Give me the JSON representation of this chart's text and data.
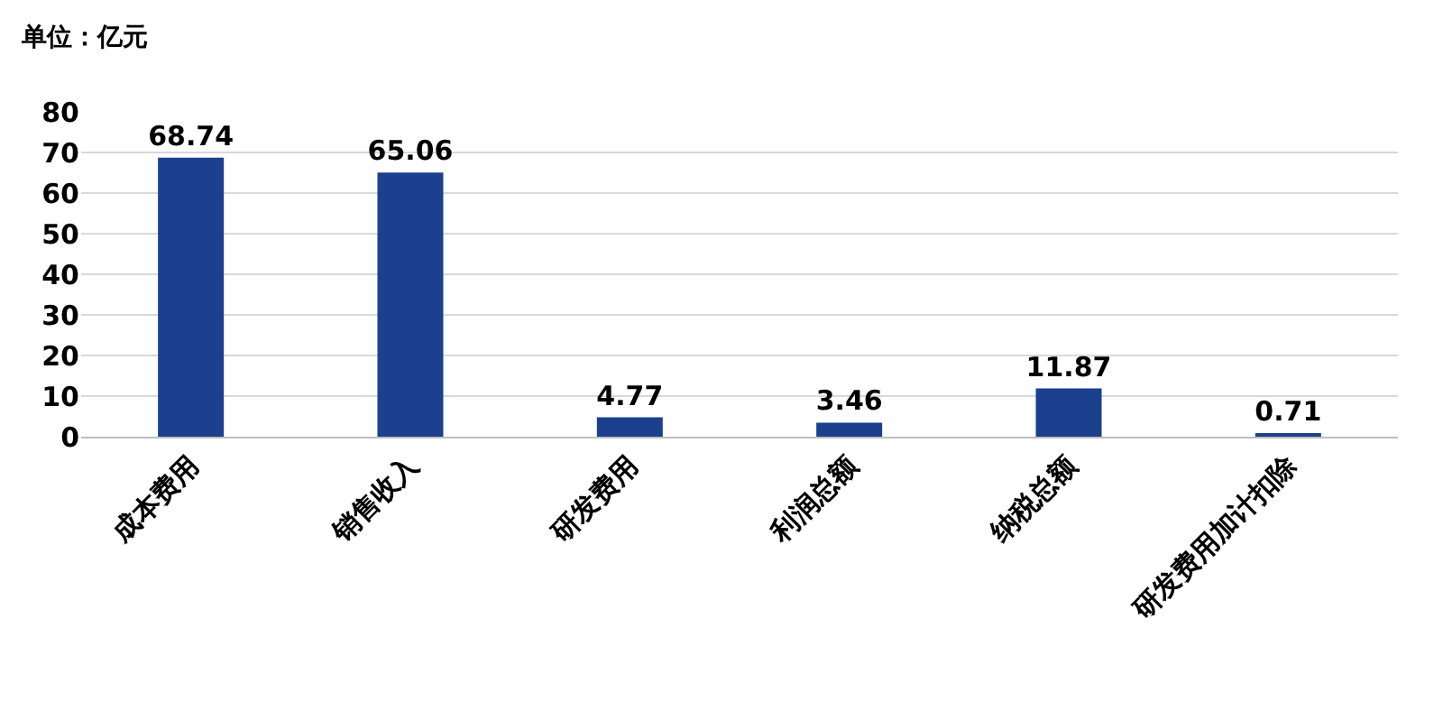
{
  "chart_data": {
    "type": "bar",
    "annotations": [
      "单位：亿元"
    ],
    "categories": [
      "成本费用",
      "销售收入",
      "研发费用",
      "利润总额",
      "纳税总额",
      "研发费用加计扣除"
    ],
    "values": [
      68.74,
      65.06,
      4.77,
      3.46,
      11.87,
      0.71
    ],
    "color": "#1c3f8e",
    "ylim": [
      0,
      80
    ],
    "yticks": [
      0,
      10,
      20,
      30,
      40,
      50,
      60,
      70,
      80
    ],
    "grid": "y",
    "data_labels": true
  }
}
